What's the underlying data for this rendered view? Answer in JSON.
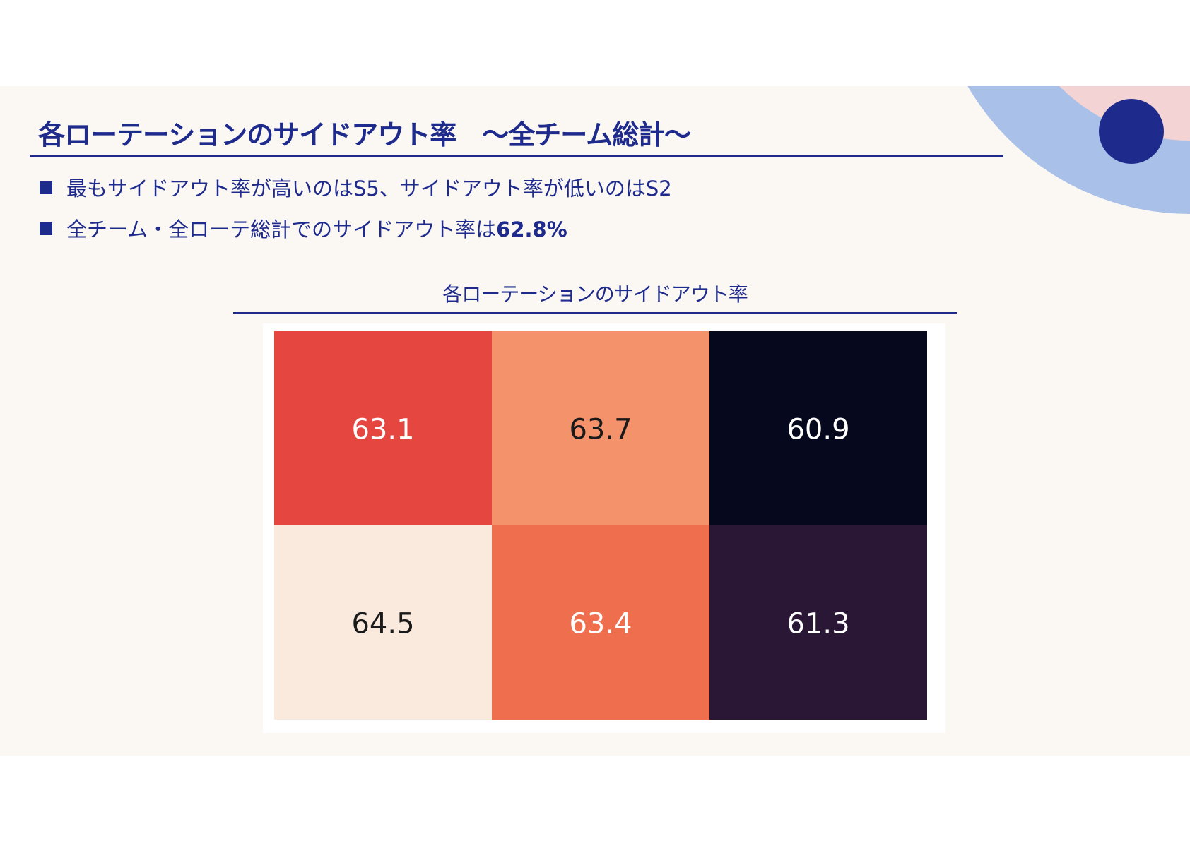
{
  "slide": {
    "title": "各ローテーションのサイドアウト率　～全チーム総計～",
    "bullets": [
      {
        "text": "最もサイドアウト率が高いのはS5、サイドアウト率が低いのはS2",
        "bold": ""
      },
      {
        "text": "全チーム・全ローテ総計でのサイドアウト率は",
        "bold": "62.8%"
      }
    ],
    "colors": {
      "accent": "#1f2b8c",
      "background": "#fbf8f4",
      "deco_light_blue": "#a9c1e8",
      "deco_pink": "#f3d3d3",
      "deco_dark_blue": "#1f2b8c"
    }
  },
  "chart_data": {
    "type": "heatmap",
    "title": "各ローテーションのサイドアウト率",
    "rows": 2,
    "cols": 3,
    "values": [
      [
        63.1,
        63.7,
        60.9
      ],
      [
        64.5,
        63.4,
        61.3
      ]
    ],
    "value_labels": [
      [
        "63.1",
        "63.7",
        "60.9"
      ],
      [
        "64.5",
        "63.4",
        "61.3"
      ]
    ],
    "cell_colors": [
      [
        "#e64640",
        "#f4936b",
        "#06081e"
      ],
      [
        "#faeade",
        "#ee6e4e",
        "#2a1736"
      ]
    ],
    "label_colors": [
      [
        "#ffffff",
        "#1a1a1a",
        "#ffffff"
      ],
      [
        "#1a1a1a",
        "#ffffff",
        "#ffffff"
      ]
    ],
    "colormap": "rocket",
    "colorbar": false,
    "xlabel": "",
    "ylabel": ""
  }
}
